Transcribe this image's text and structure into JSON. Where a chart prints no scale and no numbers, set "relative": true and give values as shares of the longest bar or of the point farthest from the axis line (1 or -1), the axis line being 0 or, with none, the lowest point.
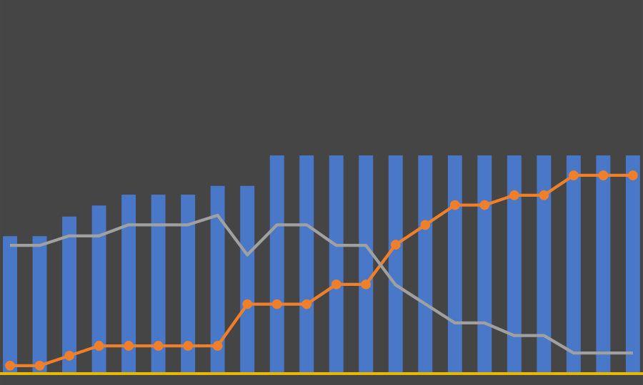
{
  "chart_data": [
    {
      "type": "bar",
      "relative": true,
      "categories": [
        null,
        null,
        null,
        null,
        null,
        null,
        null,
        null,
        null,
        null,
        null,
        null,
        null,
        null,
        null,
        null,
        null,
        null,
        null,
        null,
        null,
        null
      ],
      "color": "#4a78c8",
      "values": [
        0.63,
        0.63,
        0.72,
        0.77,
        0.82,
        0.82,
        0.82,
        0.86,
        0.86,
        1,
        1,
        1,
        1,
        1,
        1,
        1,
        1,
        1,
        1,
        1,
        1,
        1
      ]
    },
    {
      "type": "line",
      "relative": true,
      "categories": [
        null,
        null,
        null,
        null,
        null,
        null,
        null,
        null,
        null,
        null,
        null,
        null,
        null,
        null,
        null,
        null,
        null,
        null,
        null,
        null,
        null,
        null
      ],
      "color": "#f07f2a",
      "marker": "circle",
      "values": [
        0.04,
        0.04,
        0.09,
        0.14,
        0.14,
        0.14,
        0.14,
        0.14,
        0.35,
        0.35,
        0.35,
        0.45,
        0.45,
        0.65,
        0.75,
        0.85,
        0.85,
        0.9,
        0.9,
        1,
        1,
        1
      ]
    },
    {
      "type": "line",
      "relative": true,
      "categories": [
        null,
        null,
        null,
        null,
        null,
        null,
        null,
        null,
        null,
        null,
        null,
        null,
        null,
        null,
        null,
        null,
        null,
        null,
        null,
        null,
        null,
        null
      ],
      "color": "#a0a0a0",
      "values": [
        0.81,
        0.81,
        0.87,
        0.87,
        0.94,
        0.94,
        0.94,
        1,
        0.75,
        0.94,
        0.94,
        0.81,
        0.81,
        0.56,
        0.44,
        0.32,
        0.32,
        0.24,
        0.24,
        0.13,
        0.13,
        0.13
      ]
    }
  ]
}
